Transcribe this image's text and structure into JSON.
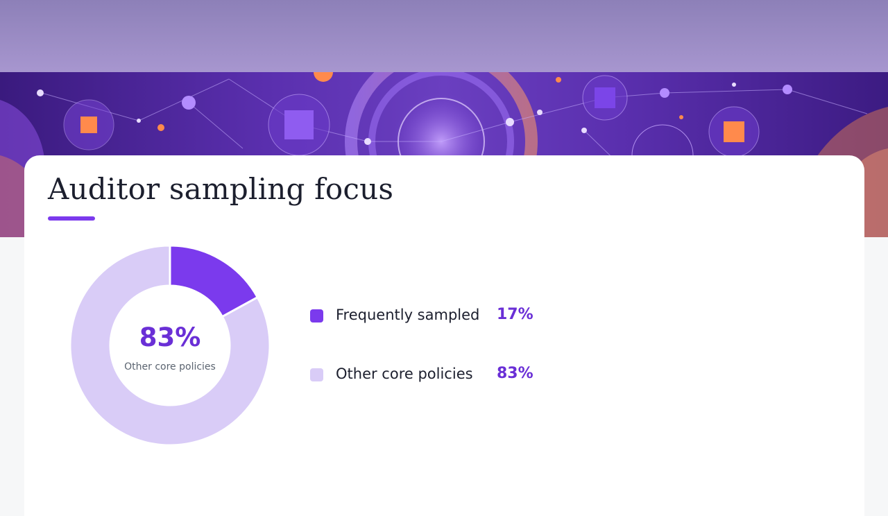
{
  "page": {
    "title": "Auditor sampling focus"
  },
  "colors": {
    "accent": "#7b3aed",
    "accent_light": "#d9ccf7",
    "value_text": "#6a2fd6"
  },
  "chart_data": {
    "type": "pie",
    "donut": true,
    "categories": [
      "Frequently sampled",
      "Other core policies"
    ],
    "values": [
      17,
      83
    ],
    "unit": "%",
    "colors": [
      "#7b3aed",
      "#d9ccf7"
    ],
    "center": {
      "value": "83%",
      "label": "Other core policies"
    },
    "legend": [
      {
        "label": "Frequently sampled",
        "value": "17%"
      },
      {
        "label": "Other core policies",
        "value": "83%"
      }
    ],
    "legend_position": "right"
  }
}
